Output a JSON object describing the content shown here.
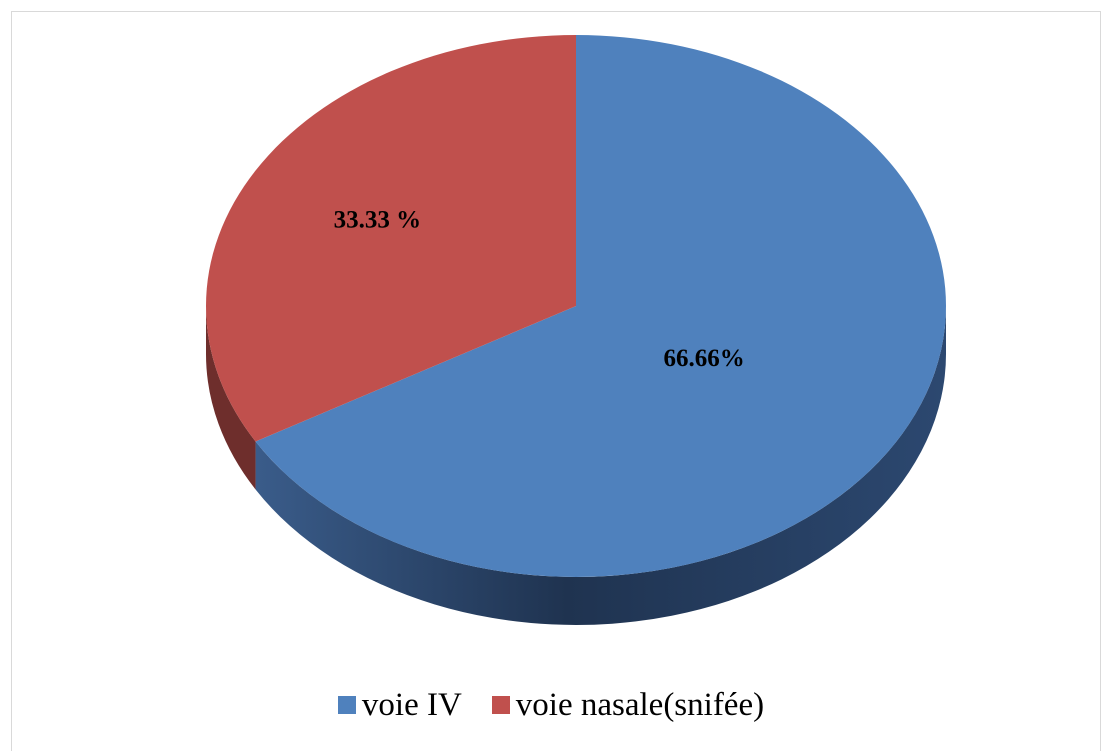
{
  "chart_data": {
    "type": "pie",
    "categories": [
      "voie IV",
      "voie nasale(snifée)"
    ],
    "values": [
      66.66,
      33.33
    ],
    "data_labels": [
      "66.66%",
      "33.33 %"
    ],
    "colors": [
      "#4F81BD",
      "#C0504D"
    ],
    "side_colors": [
      "#2A4468",
      "#6E2E2C"
    ],
    "legend_position": "bottom",
    "three_d": true
  },
  "legend": {
    "items": [
      {
        "label": "voie IV",
        "color": "#4F81BD"
      },
      {
        "label": "voie nasale(snifée)",
        "color": "#C0504D"
      }
    ]
  }
}
